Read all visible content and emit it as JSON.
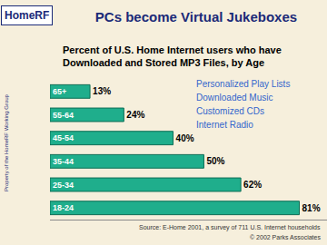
{
  "chart_data": {
    "type": "bar",
    "orientation": "horizontal",
    "logo": "HomeRF",
    "title": "PCs become Virtual Jukeboxes",
    "subtitle": "Percent of U.S. Home Internet users who have\nDownloaded and Stored MP3 Files, by Age",
    "categories": [
      "65+",
      "55-64",
      "45-54",
      "35-44",
      "25-34",
      "18-24"
    ],
    "values": [
      13,
      24,
      40,
      50,
      62,
      81
    ],
    "value_labels": [
      "13%",
      "24%",
      "40%",
      "50%",
      "62%",
      "81%"
    ],
    "data_labels": true,
    "color": "#1fae8c",
    "xlim": [
      0,
      90
    ],
    "xticks": [],
    "tick_labels": "y",
    "grid": false,
    "annotations": [
      "Personalized Play Lists",
      "Downloaded Music",
      "Customized CDs",
      "Internet Radio"
    ],
    "source": "Source: E-Home 2001, a survey of 711 U.S. Internet households",
    "copyright": "© 2002 Parks Associates",
    "side_note": "Property of the HomeRF Working Group"
  }
}
